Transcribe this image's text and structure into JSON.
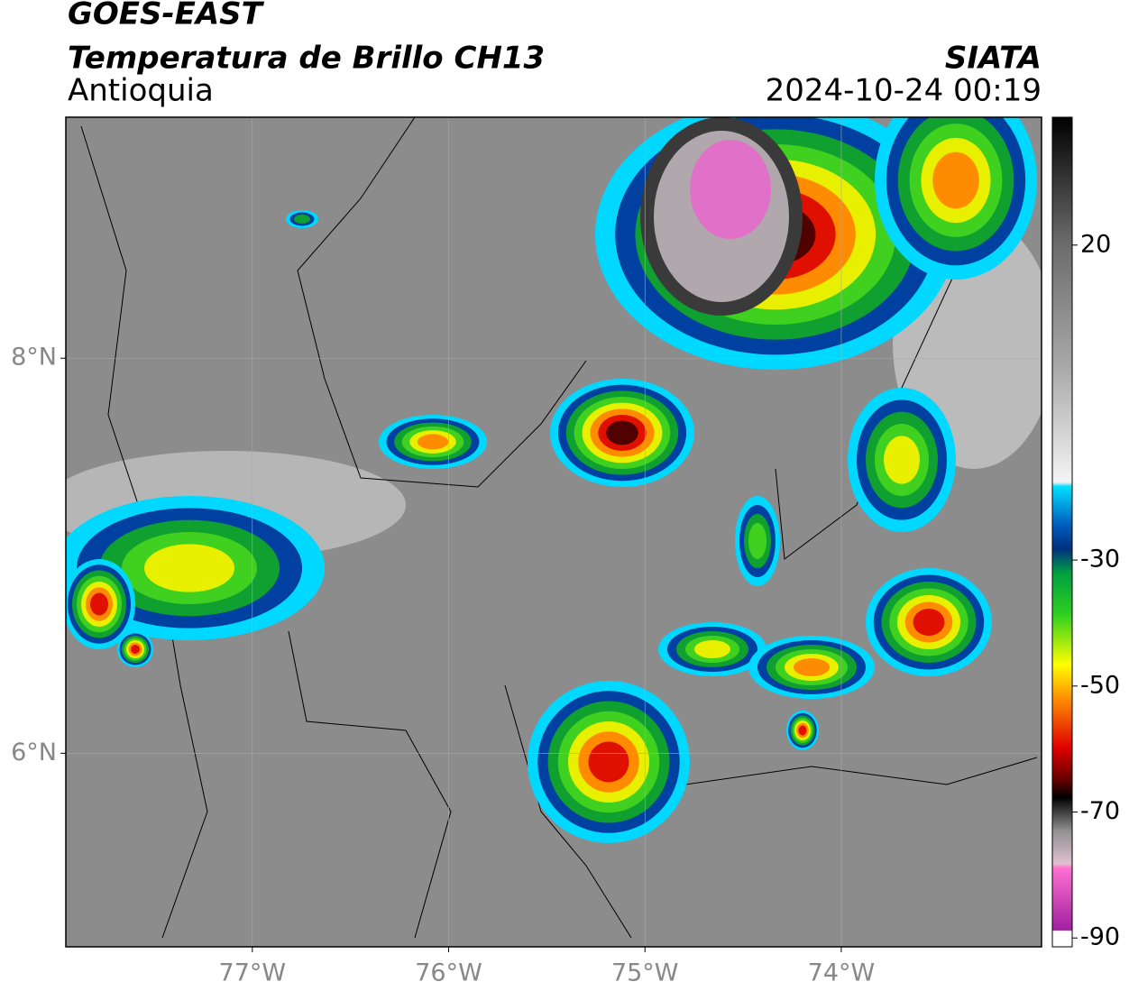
{
  "header": {
    "title": "GOES-EAST",
    "subtitle": "Temperatura de Brillo CH13",
    "region": "Antioquia",
    "source": "SIATA",
    "datetime": "2024-10-24 00:19"
  },
  "map": {
    "xlim": [
      -77.95,
      -72.98
    ],
    "ylim": [
      5.02,
      9.22
    ],
    "xticks": [
      {
        "value": -77,
        "label": "77°W"
      },
      {
        "value": -76,
        "label": "76°W"
      },
      {
        "value": -75,
        "label": "75°W"
      },
      {
        "value": -74,
        "label": "74°W"
      }
    ],
    "yticks": [
      {
        "value": 8,
        "label": "8°N"
      },
      {
        "value": 6,
        "label": "6°N"
      }
    ],
    "grid": true
  },
  "colorbar": {
    "lim": [
      -91.4,
      40.3
    ],
    "ticks": [
      20,
      -30,
      -50,
      -70,
      -90
    ]
  }
}
